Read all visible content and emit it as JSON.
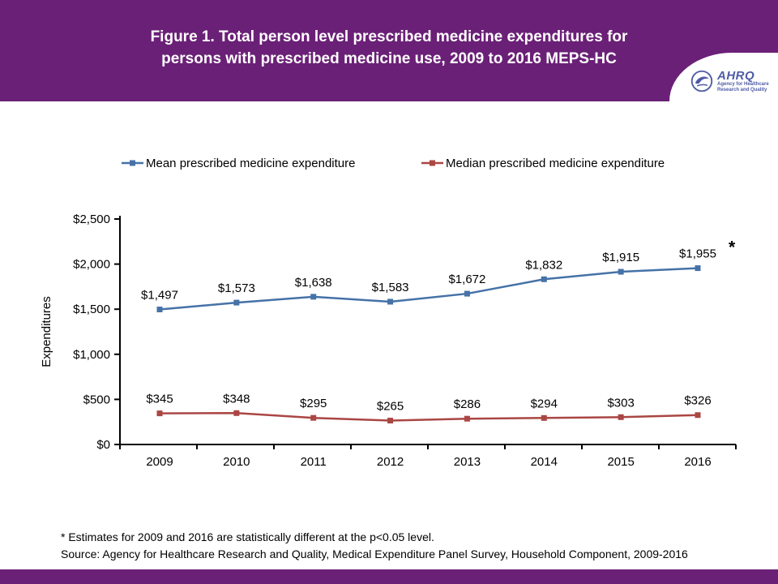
{
  "header": {
    "title_line1": "Figure 1. Total person level prescribed medicine expenditures for",
    "title_line2": "persons with prescribed medicine use, 2009 to 2016 MEPS-HC"
  },
  "logo": {
    "name": "AHRQ",
    "tagline": "Agency for Healthcare Research and Quality"
  },
  "chart_data": {
    "type": "line",
    "categories": [
      "2009",
      "2010",
      "2011",
      "2012",
      "2013",
      "2014",
      "2015",
      "2016"
    ],
    "series": [
      {
        "name": "Mean prescribed medicine expenditure",
        "color": "#4572A7",
        "values": [
          1497,
          1573,
          1638,
          1583,
          1672,
          1832,
          1915,
          1955
        ],
        "labels": [
          "$1,497",
          "$1,573",
          "$1,638",
          "$1,583",
          "$1,672",
          "$1,832",
          "$1,915",
          "$1,955"
        ]
      },
      {
        "name": "Median prescribed medicine expenditure",
        "color": "#AA4643",
        "values": [
          345,
          348,
          295,
          265,
          286,
          294,
          303,
          326
        ],
        "labels": [
          "$345",
          "$348",
          "$295",
          "$265",
          "$286",
          "$294",
          "$303",
          "$326"
        ]
      }
    ],
    "ylabel": "Expenditures",
    "xlabel": "",
    "ylim": [
      0,
      2500
    ],
    "ytick_labels": [
      "$0",
      "$500",
      "$1,000",
      "$1,500",
      "$2,000",
      "$2,500"
    ],
    "legend_position": "top",
    "grid": false,
    "significance_marker": {
      "series_index": 0,
      "point_index": 7,
      "marker": "*"
    }
  },
  "footnotes": {
    "line1": "* Estimates for 2009 and 2016 are statistically different at the p<0.05 level.",
    "line2": "Source: Agency for Healthcare Research and Quality, Medical Expenditure Panel Survey, Household Component, 2009-2016"
  },
  "colors": {
    "header_background": "#6B2077",
    "footer_background": "#6B2077",
    "mean_series": "#4572A7",
    "median_series": "#AA4643"
  }
}
